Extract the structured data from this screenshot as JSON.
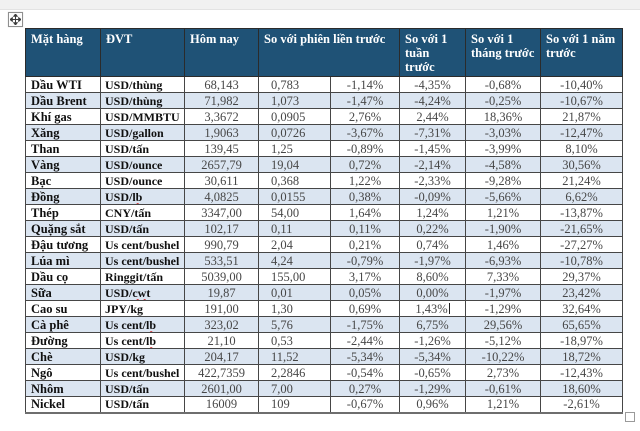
{
  "page": {
    "app_context": "word-processor-document",
    "colors": {
      "header_bg": "#1f5276",
      "band_row_bg": "#dbe5f1",
      "grid_line": "#464646",
      "spellcheck_underline": "#cc0000"
    },
    "move_handle": {
      "icon": "move-four-arrows-icon"
    },
    "resize_handle": {
      "icon": "resize-square-icon"
    }
  },
  "table": {
    "headers": [
      "Mặt hàng",
      "ĐVT",
      "Hôm nay",
      "So với phiên liền trước",
      "So với 1 tuần trước",
      "So với 1 tháng trước",
      "So với 1 năm trước"
    ],
    "rows": [
      {
        "name": "Dầu WTI",
        "unit": "USD/thùng",
        "unit_flag": "",
        "today": "68,143",
        "change": "0,783",
        "vs_session": "-1,14%",
        "vs_week": "-4,35%",
        "vs_month": "-0,68%",
        "vs_year": "-10,40%",
        "caret": false
      },
      {
        "name": "Dầu Brent",
        "unit": "USD/thùng",
        "unit_flag": "",
        "today": "71,982",
        "change": "1,073",
        "vs_session": "-1,47%",
        "vs_week": "-4,24%",
        "vs_month": "-0,25%",
        "vs_year": "-10,67%",
        "caret": false
      },
      {
        "name": "Khí gas",
        "unit": "USD/MMBTU",
        "unit_flag": "",
        "today": "3,3672",
        "change": "0,0905",
        "vs_session": "2,76%",
        "vs_week": "2,44%",
        "vs_month": "18,36%",
        "vs_year": "21,87%",
        "caret": false
      },
      {
        "name": "Xăng",
        "unit": "USD/gallon",
        "unit_flag": "",
        "today": "1,9063",
        "change": "0,0726",
        "vs_session": "-3,67%",
        "vs_week": "-7,31%",
        "vs_month": "-3,03%",
        "vs_year": "-12,47%",
        "caret": false
      },
      {
        "name": "Than",
        "unit": "USD/tấn",
        "unit_flag": "",
        "today": "139,45",
        "change": "1,25",
        "vs_session": "-0,89%",
        "vs_week": "-1,45%",
        "vs_month": "-3,99%",
        "vs_year": "8,10%",
        "caret": false
      },
      {
        "name": "Vàng",
        "unit": "USD/ounce",
        "unit_flag": "",
        "today": "2657,79",
        "change": "19,04",
        "vs_session": "0,72%",
        "vs_week": "-2,14%",
        "vs_month": "-4,58%",
        "vs_year": "30,56%",
        "caret": false
      },
      {
        "name": "Bạc",
        "unit": "USD/ounce",
        "unit_flag": "",
        "today": "30,611",
        "change": "0,368",
        "vs_session": "1,22%",
        "vs_week": "-2,33%",
        "vs_month": "-9,28%",
        "vs_year": "21,24%",
        "caret": false
      },
      {
        "name": "Đồng",
        "unit": "USD/lb",
        "unit_flag": "lb",
        "today": "4,0825",
        "change": "0,0155",
        "vs_session": "0,38%",
        "vs_week": "-0,09%",
        "vs_month": "-5,66%",
        "vs_year": "6,62%",
        "caret": false
      },
      {
        "name": "Thép",
        "unit": "CNY/tấn",
        "unit_flag": "",
        "today": "3347,00",
        "change": "54,00",
        "vs_session": "1,64%",
        "vs_week": "1,24%",
        "vs_month": "1,21%",
        "vs_year": "-13,87%",
        "caret": false
      },
      {
        "name": "Quặng sắt",
        "unit": "USD/tấn",
        "unit_flag": "",
        "today": "102,17",
        "change": "0,11",
        "vs_session": "0,11%",
        "vs_week": "0,22%",
        "vs_month": "-1,90%",
        "vs_year": "-21,65%",
        "caret": false
      },
      {
        "name": "Đậu tương",
        "unit": "Us cent/bushel",
        "unit_flag": "",
        "today": "990,79",
        "change": "2,04",
        "vs_session": "0,21%",
        "vs_week": "0,74%",
        "vs_month": "1,46%",
        "vs_year": "-27,27%",
        "caret": false
      },
      {
        "name": "Lúa mì",
        "unit": "Us cent/bushel",
        "unit_flag": "",
        "today": "533,51",
        "change": "4,24",
        "vs_session": "-0,79%",
        "vs_week": "-1,97%",
        "vs_month": "-6,93%",
        "vs_year": "-10,78%",
        "caret": false
      },
      {
        "name": "Dầu cọ",
        "unit": "Ringgit/tấn",
        "unit_flag": "",
        "today": "5039,00",
        "change": "155,00",
        "vs_session": "3,17%",
        "vs_week": "8,60%",
        "vs_month": "7,33%",
        "vs_year": "29,37%",
        "caret": false
      },
      {
        "name": "Sữa",
        "unit": "USD/cwt",
        "unit_flag": "cwt",
        "today": "19,87",
        "change": "0,01",
        "vs_session": "0,05%",
        "vs_week": "0,00%",
        "vs_month": "-1,97%",
        "vs_year": "23,42%",
        "caret": false
      },
      {
        "name": "Cao su",
        "unit": "JPY/kg",
        "unit_flag": "",
        "today": "191,00",
        "change": "1,30",
        "vs_session": "0,69%",
        "vs_week": "1,43%",
        "vs_month": "-1,29%",
        "vs_year": "32,64%",
        "caret": true
      },
      {
        "name": "Cà phê",
        "unit": "Us cent/lb",
        "unit_flag": "lb",
        "today": "323,02",
        "change": "5,76",
        "vs_session": "-1,75%",
        "vs_week": "6,75%",
        "vs_month": "29,56%",
        "vs_year": "65,65%",
        "caret": false
      },
      {
        "name": "Đường",
        "unit": "Us cent/lb",
        "unit_flag": "lb",
        "today": "21,10",
        "change": "0,53",
        "vs_session": "-2,44%",
        "vs_week": "-1,26%",
        "vs_month": "-5,12%",
        "vs_year": "-18,97%",
        "caret": false
      },
      {
        "name": "Chè",
        "unit": "USD/kg",
        "unit_flag": "",
        "today": "204,17",
        "change": "11,52",
        "vs_session": "-5,34%",
        "vs_week": "-5,34%",
        "vs_month": "-10,22%",
        "vs_year": "18,72%",
        "caret": false
      },
      {
        "name": "Ngô",
        "unit": "Us cent/bushel",
        "unit_flag": "",
        "today": "422,7359",
        "change": "2,2846",
        "vs_session": "-0,54%",
        "vs_week": "-0,65%",
        "vs_month": "2,73%",
        "vs_year": "-12,43%",
        "caret": false
      },
      {
        "name": "Nhôm",
        "unit": "USD/tấn",
        "unit_flag": "",
        "today": "2601,00",
        "change": "7,00",
        "vs_session": "0,27%",
        "vs_week": "-1,29%",
        "vs_month": "-0,61%",
        "vs_year": "18,60%",
        "caret": false
      },
      {
        "name": "Nickel",
        "unit": "USD/tấn",
        "unit_flag": "",
        "today": "16009",
        "change": "109",
        "vs_session": "-0,67%",
        "vs_week": "0,96%",
        "vs_month": "1,21%",
        "vs_year": "-2,61%",
        "caret": false
      }
    ]
  }
}
